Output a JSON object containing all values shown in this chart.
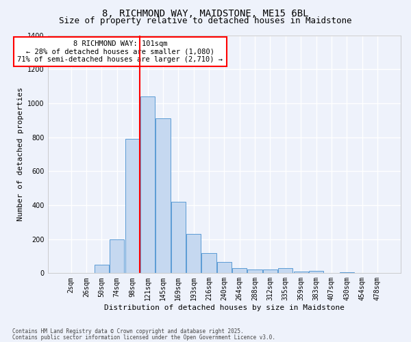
{
  "title1": "8, RICHMOND WAY, MAIDSTONE, ME15 6BL",
  "title2": "Size of property relative to detached houses in Maidstone",
  "xlabel": "Distribution of detached houses by size in Maidstone",
  "ylabel": "Number of detached properties",
  "footer1": "Contains HM Land Registry data © Crown copyright and database right 2025.",
  "footer2": "Contains public sector information licensed under the Open Government Licence v3.0.",
  "categories": [
    "2sqm",
    "26sqm",
    "50sqm",
    "74sqm",
    "98sqm",
    "121sqm",
    "145sqm",
    "169sqm",
    "193sqm",
    "216sqm",
    "240sqm",
    "264sqm",
    "288sqm",
    "312sqm",
    "335sqm",
    "359sqm",
    "383sqm",
    "407sqm",
    "430sqm",
    "454sqm",
    "478sqm"
  ],
  "values": [
    0,
    0,
    50,
    200,
    790,
    1040,
    910,
    420,
    230,
    120,
    65,
    30,
    20,
    20,
    30,
    10,
    15,
    0,
    5,
    0,
    0
  ],
  "bar_color": "#c5d8f0",
  "bar_edge_color": "#5b9bd5",
  "red_line_x": 4.5,
  "annotation_text": "8 RICHMOND WAY: 101sqm\n← 28% of detached houses are smaller (1,080)\n71% of semi-detached houses are larger (2,710) →",
  "ylim": [
    0,
    1400
  ],
  "yticks": [
    0,
    200,
    400,
    600,
    800,
    1000,
    1200,
    1400
  ],
  "bg_color": "#eef2fb",
  "grid_color": "#ffffff",
  "title_fontsize": 10,
  "subtitle_fontsize": 9,
  "axis_label_fontsize": 8,
  "tick_fontsize": 7,
  "annotation_fontsize": 7.5,
  "footer_fontsize": 5.5
}
